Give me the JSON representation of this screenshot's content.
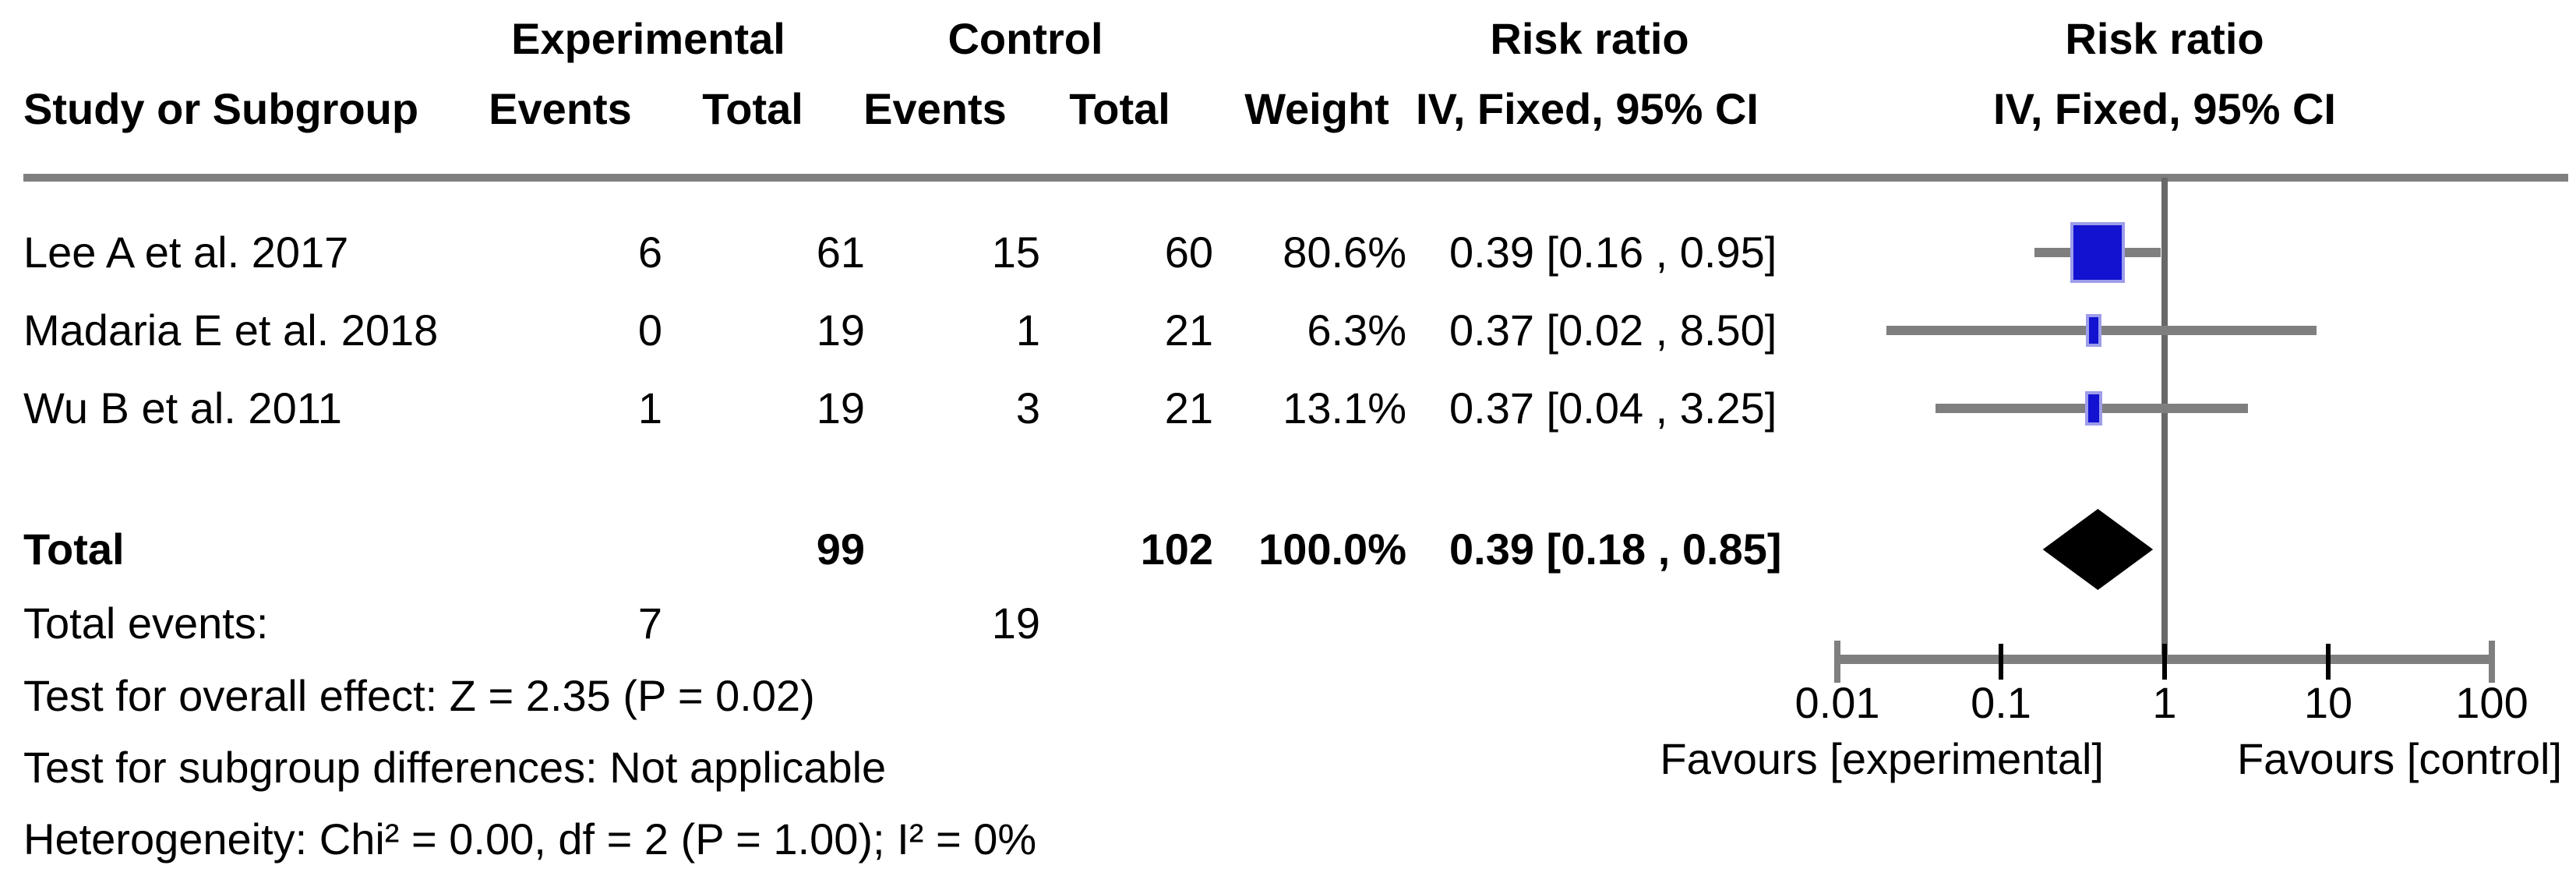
{
  "table": {
    "headers": {
      "group_experimental": "Experimental",
      "group_control": "Control",
      "risk_ratio_text_col": "Risk ratio",
      "risk_ratio_plot_col": "Risk ratio",
      "study": "Study or Subgroup",
      "events_experimental": "Events",
      "total_experimental": "Total",
      "events_control": "Events",
      "total_control": "Total",
      "weight": "Weight",
      "method_text_col": "IV, Fixed, 95% CI",
      "method_plot_col": "IV, Fixed, 95% CI"
    },
    "rows": [
      {
        "study": "Lee A et al. 2017",
        "exp_events": "6",
        "exp_total": "61",
        "ctrl_events": "15",
        "ctrl_total": "60",
        "weight": "80.6%",
        "estimate": "0.39 [0.16 , 0.95]"
      },
      {
        "study": "Madaria E et al. 2018",
        "exp_events": "0",
        "exp_total": "19",
        "ctrl_events": "1",
        "ctrl_total": "21",
        "weight": "6.3%",
        "estimate": "0.37 [0.02 , 8.50]"
      },
      {
        "study": "Wu B et al. 2011",
        "exp_events": "1",
        "exp_total": "19",
        "ctrl_events": "3",
        "ctrl_total": "21",
        "weight": "13.1%",
        "estimate": "0.37 [0.04 , 3.25]"
      }
    ],
    "total_row": {
      "label": "Total",
      "exp_total": "99",
      "ctrl_total": "102",
      "weight": "100.0%",
      "estimate": "0.39 [0.18 , 0.85]"
    },
    "total_events_row": {
      "label": "Total events:",
      "exp": "7",
      "ctrl": "19"
    },
    "footnotes": [
      "Test for overall effect: Z = 2.35 (P = 0.02)",
      "Test for subgroup differences: Not applicable",
      "Heterogeneity: Chi² = 0.00, df = 2 (P = 1.00); I² = 0%"
    ]
  },
  "axis": {
    "tick_labels": [
      "0.01",
      "0.1",
      "1",
      "10",
      "100"
    ],
    "favours_left": "Favours [experimental]",
    "favours_right": "Favours [control]"
  },
  "colors": {
    "marker_blue": "#1212d0",
    "marker_halo": "#9d9dea",
    "ci_gray": "#7f7f7f",
    "axis_gray": "#7f7f7f",
    "null_line_gray": "#686868",
    "divider_gray": "#7f7f7f",
    "diamond_black": "#000000",
    "text": "#000000",
    "background": "#ffffff"
  },
  "chart_data": {
    "type": "forest",
    "effect_measure": "Risk ratio",
    "model": "IV, Fixed, 95% CI",
    "x_scale": "log10",
    "x_ticks": [
      0.01,
      0.1,
      1,
      10,
      100
    ],
    "xlim": [
      0.01,
      100
    ],
    "favours": {
      "left": "Favours [experimental]",
      "right": "Favours [control]"
    },
    "studies": [
      {
        "name": "Lee A et al. 2017",
        "exp_events": 6,
        "exp_total": 61,
        "ctrl_events": 15,
        "ctrl_total": 60,
        "weight_pct": 80.6,
        "rr": 0.39,
        "ci_low": 0.16,
        "ci_high": 0.95
      },
      {
        "name": "Madaria E et al. 2018",
        "exp_events": 0,
        "exp_total": 19,
        "ctrl_events": 1,
        "ctrl_total": 21,
        "weight_pct": 6.3,
        "rr": 0.37,
        "ci_low": 0.02,
        "ci_high": 8.5
      },
      {
        "name": "Wu B et al. 2011",
        "exp_events": 1,
        "exp_total": 19,
        "ctrl_events": 3,
        "ctrl_total": 21,
        "weight_pct": 13.1,
        "rr": 0.37,
        "ci_low": 0.04,
        "ci_high": 3.25
      }
    ],
    "total": {
      "exp_events": 7,
      "exp_total": 99,
      "ctrl_events": 19,
      "ctrl_total": 102,
      "weight_pct": 100.0,
      "rr": 0.39,
      "ci_low": 0.18,
      "ci_high": 0.85
    },
    "tests": {
      "overall_effect": "Z = 2.35 (P = 0.02)",
      "subgroup_differences": "Not applicable",
      "heterogeneity": "Chi² = 0.00, df = 2 (P = 1.00); I² = 0%"
    }
  }
}
